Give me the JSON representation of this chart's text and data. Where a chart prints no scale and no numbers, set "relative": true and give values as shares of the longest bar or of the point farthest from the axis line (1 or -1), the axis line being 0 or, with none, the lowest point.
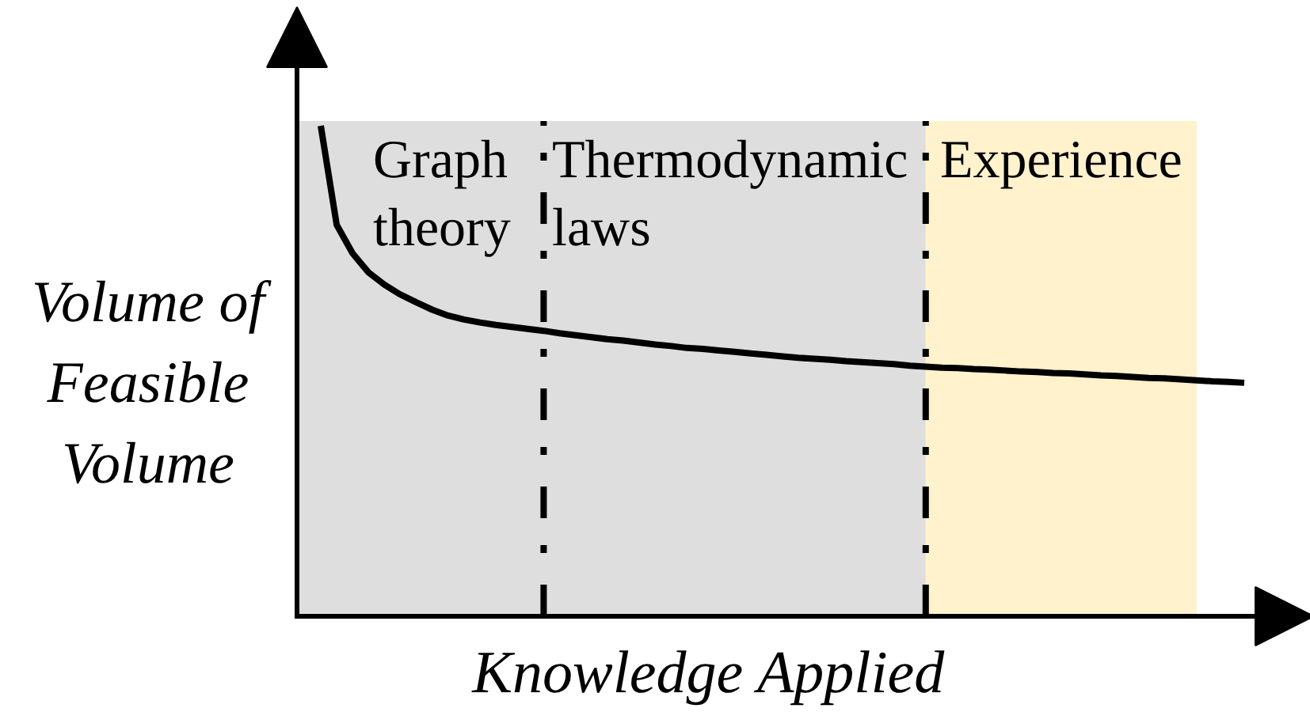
{
  "chart_data": {
    "type": "line",
    "relative": true,
    "xlabel": "Knowledge Applied",
    "ylabel": "Volume of Feasible Volume",
    "categories": [
      null,
      null,
      null,
      null,
      null,
      null,
      null,
      null,
      null,
      null,
      null,
      null,
      null,
      null,
      null,
      null,
      null,
      null,
      null,
      null,
      null,
      null,
      null,
      null,
      null,
      null,
      null,
      null,
      null,
      null,
      null,
      null,
      null,
      null,
      null,
      null,
      null,
      null,
      null,
      null,
      null,
      null,
      null,
      null,
      null,
      null,
      null,
      null,
      null,
      null,
      null,
      null,
      null,
      null,
      null,
      null,
      null,
      null,
      null
    ],
    "series": [
      {
        "color": "#000000",
        "values": [
          1.0,
          0.798,
          0.74,
          0.701,
          0.676,
          0.656,
          0.64,
          0.625,
          0.613,
          0.605,
          0.599,
          0.594,
          0.59,
          0.586,
          0.582,
          0.577,
          0.573,
          0.569,
          0.565,
          0.562,
          0.558,
          0.554,
          0.551,
          0.547,
          0.545,
          0.542,
          0.539,
          0.536,
          0.533,
          0.53,
          0.527,
          0.525,
          0.523,
          0.52,
          0.518,
          0.516,
          0.514,
          0.511,
          0.509,
          0.507,
          0.506,
          0.504,
          0.503,
          0.501,
          0.499,
          0.498,
          0.496,
          0.495,
          0.493,
          0.491,
          0.49,
          0.488,
          0.486,
          0.485,
          0.483,
          0.481,
          0.479,
          0.478,
          0.476
        ]
      }
    ],
    "annotations": [
      "Graph theory",
      "Thermodynamic laws",
      "Experience"
    ],
    "grid": false,
    "marker": "none",
    "line_style": "solid"
  }
}
